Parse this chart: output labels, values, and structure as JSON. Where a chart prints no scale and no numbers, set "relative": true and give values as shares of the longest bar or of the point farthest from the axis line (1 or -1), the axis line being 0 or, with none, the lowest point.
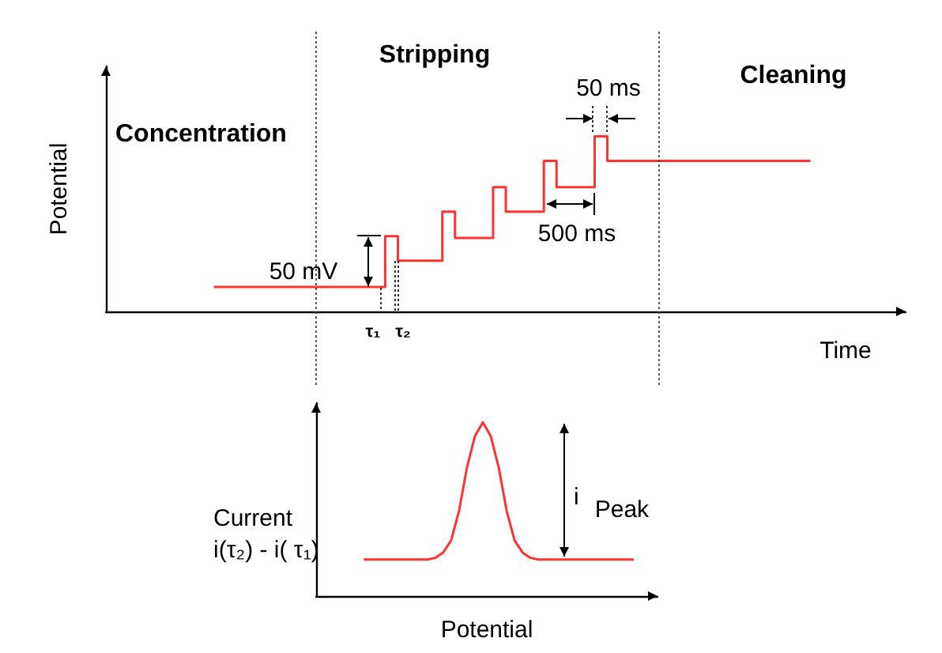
{
  "chart_data": [
    {
      "type": "step",
      "ylabel": "Potential",
      "xlabel": "Time",
      "relative": true,
      "categories": [
        null,
        null,
        null,
        null,
        null,
        null,
        null,
        null,
        null,
        null,
        null,
        null,
        null,
        null,
        null,
        null,
        null,
        null,
        null,
        null,
        null,
        null,
        null,
        null,
        null,
        null,
        null,
        null,
        null,
        null,
        null,
        null,
        null,
        null,
        null,
        null,
        null,
        null,
        null,
        null,
        null,
        null,
        null,
        null,
        null,
        null,
        null,
        null,
        null,
        null,
        null,
        null,
        null,
        null,
        null,
        null,
        null,
        null,
        null,
        null,
        null,
        null,
        null,
        null,
        null,
        null,
        null,
        null,
        null,
        null,
        null,
        null,
        null,
        null,
        null,
        null,
        null,
        null,
        null,
        null,
        null,
        null,
        null,
        null,
        null,
        null,
        null,
        null,
        null,
        null,
        null,
        null,
        null,
        null,
        null,
        null,
        null,
        null,
        null,
        null,
        null,
        null,
        null,
        null,
        null,
        null,
        null,
        null,
        null,
        null,
        null,
        null,
        null,
        null,
        null,
        null,
        null,
        null,
        null,
        null,
        null,
        null,
        null,
        null,
        null,
        null,
        null
      ],
      "series": [
        {
          "color": "#ff3333",
          "values": [
            null,
            null,
            null,
            null,
            null,
            null,
            null,
            null,
            null,
            null,
            null,
            null,
            null,
            null,
            null,
            null,
            null,
            0.14,
            0.14,
            0.14,
            0.14,
            0.14,
            0.14,
            0.14,
            0.14,
            0.14,
            0.14,
            0.14,
            0.14,
            0.14,
            0.14,
            0.14,
            0.14,
            0.14,
            0.14,
            0.14,
            0.14,
            0.14,
            0.14,
            0.14,
            0.14,
            0.14,
            0.14,
            0.14,
            0.43,
            0.43,
            0.29,
            0.29,
            0.29,
            0.29,
            0.29,
            0.29,
            0.29,
            0.57,
            0.57,
            0.42,
            0.42,
            0.42,
            0.42,
            0.42,
            0.42,
            0.71,
            0.71,
            0.57,
            0.57,
            0.57,
            0.57,
            0.57,
            0.57,
            0.86,
            0.86,
            0.71,
            0.71,
            0.71,
            0.71,
            0.71,
            0.71,
            1,
            1,
            0.86,
            0.86,
            0.86,
            0.86,
            0.86,
            0.86,
            0.86,
            0.86,
            0.86,
            0.86,
            0.86,
            0.86,
            0.86,
            0.86,
            0.86,
            0.86,
            0.86,
            0.86,
            0.86,
            0.86,
            0.86,
            0.86,
            0.86,
            0.86,
            0.86,
            0.86,
            0.86,
            0.86,
            0.86,
            0.86,
            0.86,
            0.86,
            null,
            null,
            null,
            null,
            null,
            null,
            null,
            null,
            null,
            null,
            null,
            null,
            null,
            null,
            null,
            null
          ]
        }
      ],
      "annotations": [
        "Concentration",
        "Stripping",
        "Cleaning",
        "50 mV",
        "50 ms",
        "500 ms",
        "τ₁",
        "τ₂"
      ]
    },
    {
      "type": "line",
      "xlabel": "Potential",
      "ylabel": "Current\ni(τ₂) - i( τ₁)",
      "relative": true,
      "categories": [
        null,
        null,
        null,
        null,
        null,
        null,
        null,
        null,
        null,
        null,
        null,
        null,
        null,
        null,
        null,
        null,
        null,
        null,
        null,
        null,
        null,
        null,
        null,
        null,
        null,
        null,
        null,
        null,
        null,
        null,
        null,
        null,
        null,
        null,
        null,
        null,
        null,
        null,
        null,
        null,
        null,
        null,
        null,
        null
      ],
      "series": [
        {
          "color": "#ff3333",
          "values": [
            null,
            null,
            null,
            null,
            null,
            null,
            0.21,
            0.21,
            0.21,
            0.21,
            0.21,
            0.21,
            0.21,
            0.21,
            0.21,
            0.22,
            0.25,
            0.32,
            0.49,
            0.74,
            0.92,
            1,
            0.92,
            0.74,
            0.49,
            0.32,
            0.25,
            0.22,
            0.21,
            0.21,
            0.21,
            0.21,
            0.21,
            0.21,
            0.21,
            0.21,
            0.21,
            0.21,
            0.21,
            0.21,
            0.21,
            null,
            null,
            null
          ]
        }
      ],
      "annotations": [
        "i$_{Peak}$"
      ]
    }
  ]
}
